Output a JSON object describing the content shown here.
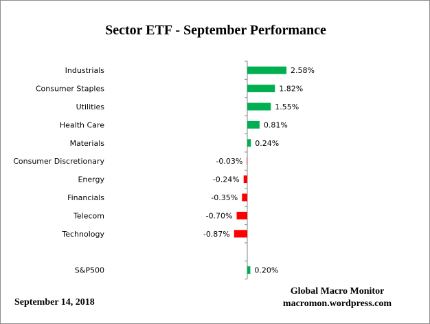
{
  "chart_data": {
    "type": "bar",
    "orientation": "horizontal",
    "title": "Sector ETF - September Performance",
    "categories": [
      "Industrials",
      "Consumer Staples",
      "Utilities",
      "Health Care",
      "Materials",
      "Consumer Discretionary",
      "Energy",
      "Financials",
      "Telecom",
      "Technology",
      "S&P500"
    ],
    "values": [
      2.58,
      1.82,
      1.55,
      0.81,
      0.24,
      -0.03,
      -0.24,
      -0.35,
      -0.7,
      -0.87,
      0.2
    ],
    "data_labels": [
      "2.58%",
      "1.82%",
      "1.55%",
      "0.81%",
      "0.24%",
      "-0.03%",
      "-0.24%",
      "-0.35%",
      "-0.70%",
      "-0.87%",
      "0.20%"
    ],
    "xlabel": "",
    "ylabel": "",
    "grid": false,
    "colors": {
      "positive": "#00b050",
      "negative": "#ff0000",
      "axis": "#868686"
    }
  },
  "footer": {
    "date": "September 14,  2018",
    "credit_line1": "Global Macro Monitor",
    "credit_line2": "macromon.wordpress.com"
  }
}
